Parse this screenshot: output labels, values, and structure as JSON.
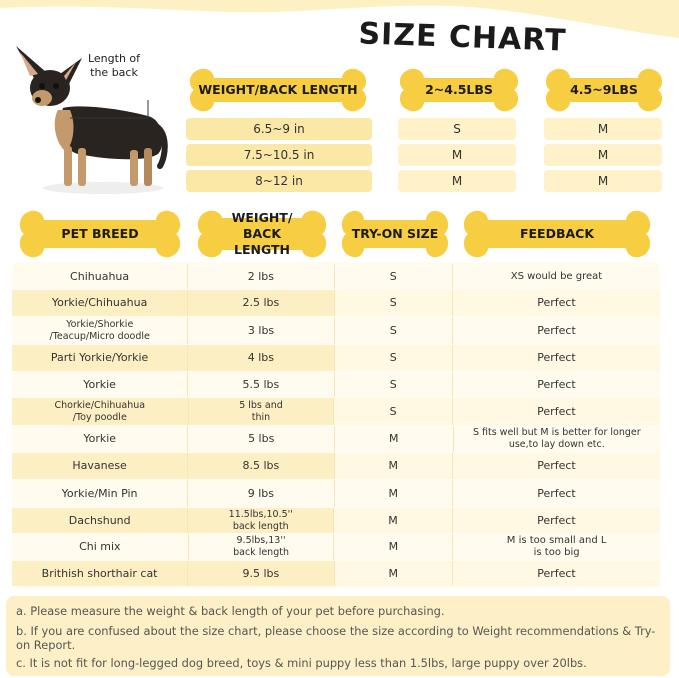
{
  "title": "SIZE CHART",
  "dog_label": "Length of the back",
  "top_table": {
    "headers": [
      "WEIGHT/BACK LENGTH",
      "2~4.5LBS",
      "4.5~9LBS"
    ],
    "rows": [
      {
        "length": "6.5~9 in",
        "small": "S",
        "large": "M"
      },
      {
        "length": "7.5~10.5 in",
        "small": "M",
        "large": "M"
      },
      {
        "length": "8~12 in",
        "small": "M",
        "large": "M"
      }
    ]
  },
  "breed_table": {
    "headers": [
      "PET BREED",
      "WEIGHT/ BACK LENGTH",
      "TRY-ON SIZE",
      "FEEDBACK"
    ],
    "rows": [
      {
        "breed": "Chihuahua",
        "weight": "2 lbs",
        "size": "S",
        "feedback": "XS would be great"
      },
      {
        "breed": "Yorkie/Chihuahua",
        "weight": "2.5 lbs",
        "size": "S",
        "feedback": "Perfect"
      },
      {
        "breed": "Yorkie/Shorkie /Teacup/Micro doodle",
        "weight": "3 lbs",
        "size": "S",
        "feedback": "Perfect"
      },
      {
        "breed": "Parti Yorkie/Yorkie",
        "weight": "4 lbs",
        "size": "S",
        "feedback": "Perfect"
      },
      {
        "breed": "Yorkie",
        "weight": "5.5 lbs",
        "size": "S",
        "feedback": "Perfect"
      },
      {
        "breed": "Chorkie/Chihuahua /Toy poodle",
        "weight": "5 lbs and thin",
        "size": "S",
        "feedback": "Perfect"
      },
      {
        "breed": "Yorkie",
        "weight": "5 lbs",
        "size": "M",
        "feedback": "S fits well but M is better for longer use,to lay down etc."
      },
      {
        "breed": "Havanese",
        "weight": "8.5 lbs",
        "size": "M",
        "feedback": "Perfect"
      },
      {
        "breed": "Yorkie/Min Pin",
        "weight": "9 lbs",
        "size": "M",
        "feedback": "Perfect"
      },
      {
        "breed": "Dachshund",
        "weight": "11.5lbs,10.5'' back length",
        "size": "M",
        "feedback": "Perfect"
      },
      {
        "breed": "Chi mix",
        "weight": "9.5lbs,13'' back length",
        "size": "M",
        "feedback": "M is too small and L is too big"
      },
      {
        "breed": "Brithish shorthair cat",
        "weight": "9.5 lbs",
        "size": "M",
        "feedback": "Perfect"
      }
    ]
  },
  "notes": [
    "a. Please measure the weight & back length of your pet before purchasing.",
    "b. If you are confused about the size chart, please choose the size according to Weight recommendations & Try-on Report.",
    "c. It is not fit for long-legged dog breed, toys & mini puppy less than 1.5lbs, large puppy over 20lbs."
  ],
  "colors": {
    "bone": "#f7cd42",
    "pill": "#fbe8a6",
    "row_shade": "#fdefc4",
    "notes_bg": "#fdf0c6"
  }
}
